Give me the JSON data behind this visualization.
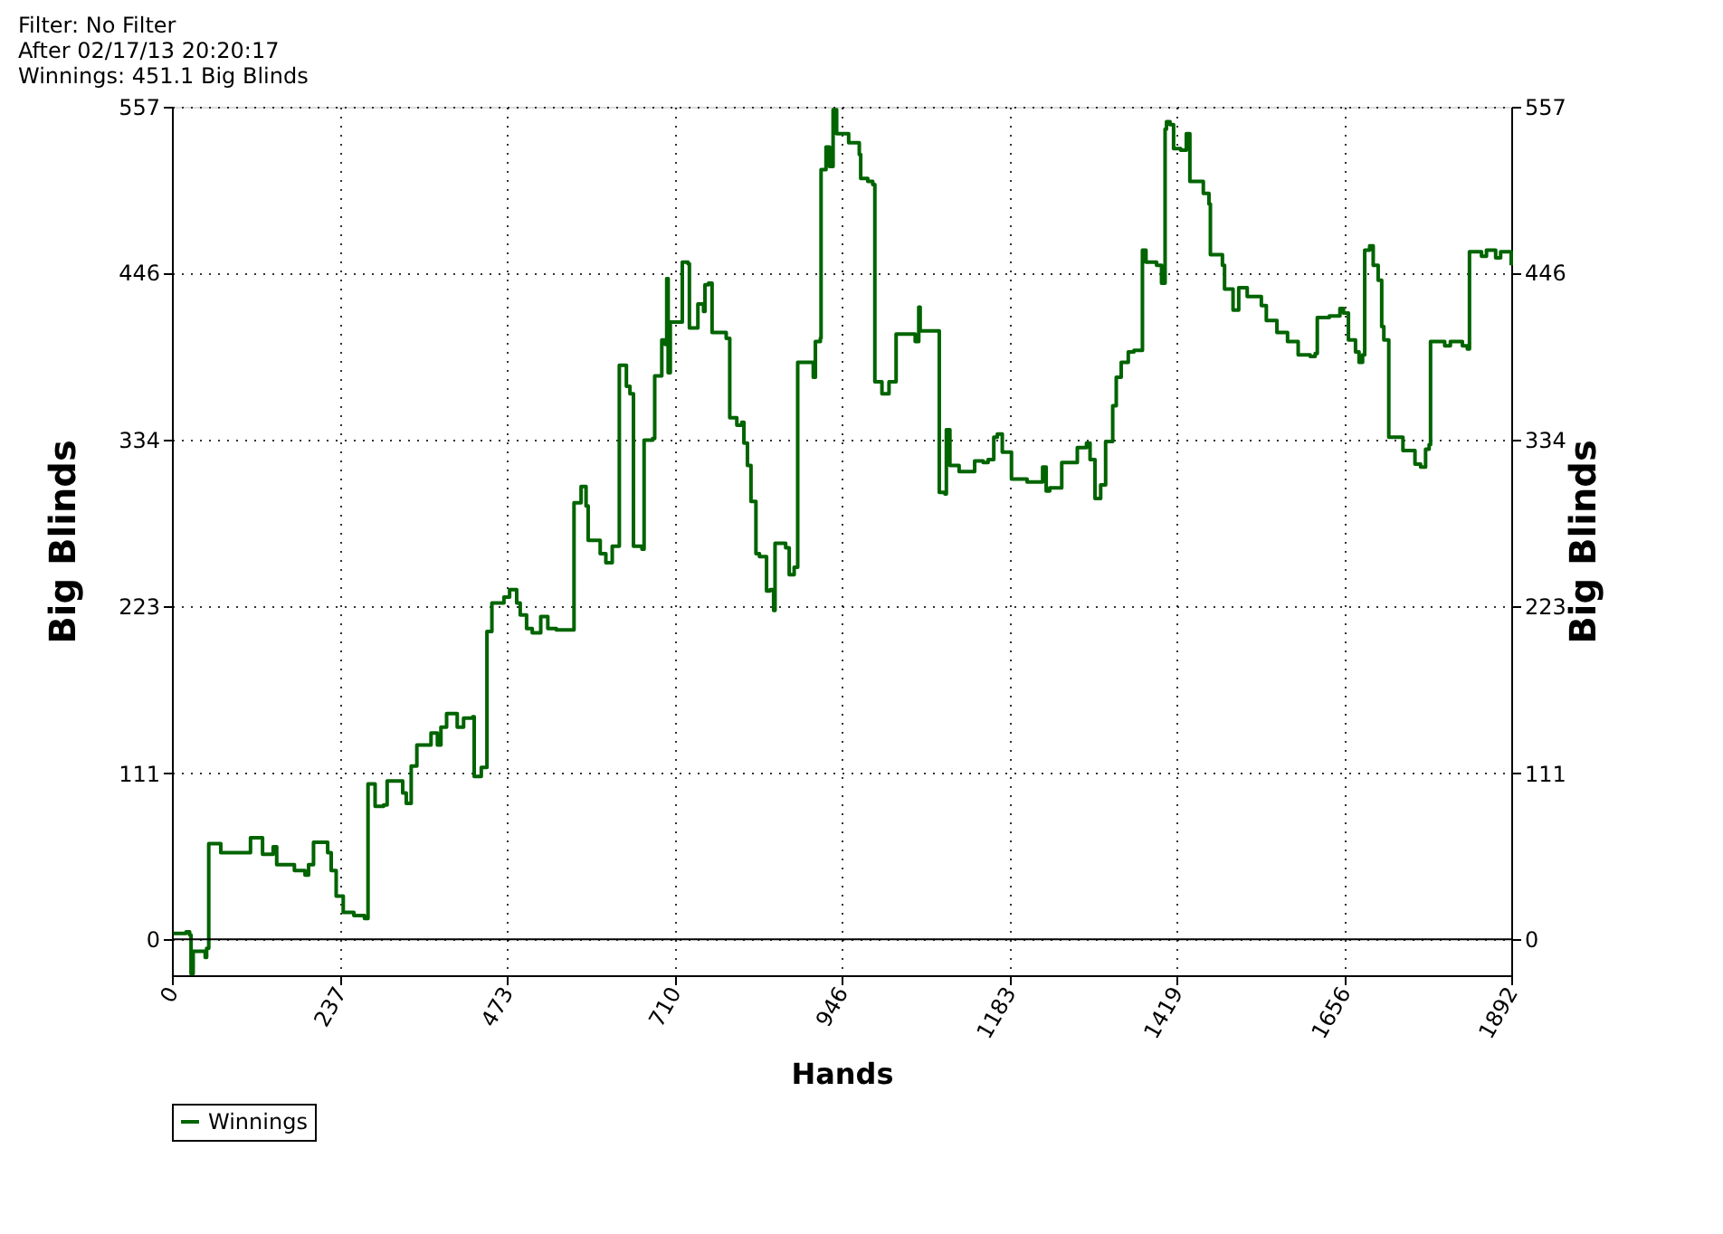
{
  "chart_data": {
    "type": "step",
    "xlabel": "Hands",
    "ylabel": "Big Blinds",
    "y2label": "Big Blinds",
    "annotations": [
      "Filter: No Filter",
      "After 02/17/13 20:20:17",
      "Winnings: 451.1 Big Blinds"
    ],
    "xlim": [
      0,
      1892
    ],
    "xticks": [
      0,
      237,
      473,
      710,
      946,
      1183,
      1419,
      1656,
      1892
    ],
    "ylim": [
      -24,
      557
    ],
    "yticks": [
      0,
      111,
      223,
      334,
      446,
      557
    ],
    "y2lim": [
      -24,
      557
    ],
    "y2ticks": [
      0,
      111,
      223,
      334,
      446,
      557
    ],
    "grid": true,
    "legend": "bottom left",
    "marker": "none",
    "line_style": "solid",
    "ref_lines": [
      {
        "axis": "y",
        "value": 0,
        "color": "#000000",
        "line_style": "solid"
      }
    ],
    "series": [
      {
        "name": "Winnings",
        "color": "#006400",
        "x": [
          2,
          20,
          25,
          27,
          30,
          47,
          49,
          52,
          69,
          91,
          111,
          128,
          143,
          148,
          173,
          188,
          193,
          200,
          220,
          225,
          232,
          242,
          257,
          272,
          277,
          287,
          299,
          304,
          326,
          331,
          338,
          346,
          366,
          375,
          380,
          388,
          403,
          412,
          425,
          427,
          437,
          445,
          452,
          469,
          477,
          487,
          492,
          501,
          509,
          521,
          531,
          543,
          566,
          568,
          578,
          585,
          588,
          605,
          613,
          622,
          630,
          632,
          642,
          647,
          652,
          664,
          667,
          679,
          682,
          692,
          697,
          699,
          701,
          704,
          716,
          721,
          729,
          731,
          741,
          743,
          751,
          753,
          758,
          763,
          778,
          783,
          788,
          798,
          805,
          808,
          813,
          818,
          825,
          830,
          840,
          845,
          850,
          852,
          867,
          872,
          879,
          884,
          894,
          906,
          909,
          916,
          917,
          924,
          929,
          934,
          939,
          956,
          971,
          973,
          983,
          990,
          993,
          1003,
          1013,
          1023,
          1050,
          1055,
          1057,
          1079,
          1084,
          1092,
          1094,
          1099,
          1112,
          1134,
          1146,
          1153,
          1161,
          1166,
          1173,
          1186,
          1208,
          1230,
          1235,
          1240,
          1257,
          1279,
          1292,
          1297,
          1304,
          1312,
          1319,
          1329,
          1334,
          1341,
          1351,
          1359,
          1371,
          1376,
          1391,
          1398,
          1403,
          1405,
          1410,
          1415,
          1425,
          1433,
          1438,
          1457,
          1465,
          1467,
          1484,
          1487,
          1499,
          1507,
          1519,
          1539,
          1546,
          1561,
          1576,
          1591,
          1608,
          1615,
          1618,
          1635,
          1650,
          1655,
          1662,
          1672,
          1677,
          1682,
          1685,
          1692,
          1697,
          1704,
          1709,
          1712,
          1719,
          1739,
          1756,
          1764,
          1771,
          1776,
          1778,
          1798,
          1806,
          1823,
          1830,
          1833,
          1850,
          1857,
          1870,
          1877,
          1892
        ],
        "values": [
          4,
          5,
          3,
          -23,
          -8,
          -12,
          -6,
          64,
          58,
          58,
          68,
          57,
          62,
          50,
          46,
          43,
          50,
          65,
          58,
          46,
          29,
          18,
          16,
          14,
          104,
          89,
          90,
          106,
          98,
          91,
          116,
          130,
          138,
          130,
          142,
          151,
          142,
          148,
          149,
          109,
          115,
          206,
          225,
          229,
          234,
          225,
          217,
          208,
          205,
          216,
          208,
          207,
          207,
          292,
          303,
          290,
          267,
          258,
          252,
          263,
          263,
          384,
          370,
          365,
          263,
          261,
          334,
          335,
          377,
          401,
          398,
          442,
          379,
          413,
          413,
          453,
          452,
          409,
          409,
          425,
          420,
          438,
          439,
          406,
          406,
          402,
          349,
          344,
          346,
          332,
          317,
          293,
          258,
          256,
          233,
          234,
          220,
          265,
          262,
          244,
          249,
          386,
          386,
          376,
          400,
          402,
          515,
          530,
          517,
          555,
          539,
          533,
          525,
          509,
          507,
          505,
          373,
          365,
          373,
          405,
          400,
          423,
          407,
          407,
          299,
          298,
          341,
          317,
          313,
          320,
          319,
          321,
          336,
          338,
          326,
          308,
          306,
          316,
          300,
          302,
          319,
          329,
          332,
          321,
          295,
          304,
          333,
          357,
          376,
          386,
          393,
          394,
          461,
          453,
          451,
          439,
          542,
          547,
          545,
          529,
          528,
          539,
          507,
          499,
          492,
          458,
          451,
          435,
          421,
          436,
          430,
          424,
          414,
          406,
          400,
          391,
          390,
          392,
          416,
          417,
          422,
          419,
          401,
          393,
          386,
          391,
          461,
          464,
          451,
          441,
          410,
          401,
          336,
          327,
          318,
          316,
          328,
          331,
          400,
          397,
          400,
          397,
          395,
          460,
          457,
          461,
          456,
          460,
          451
        ]
      }
    ]
  }
}
